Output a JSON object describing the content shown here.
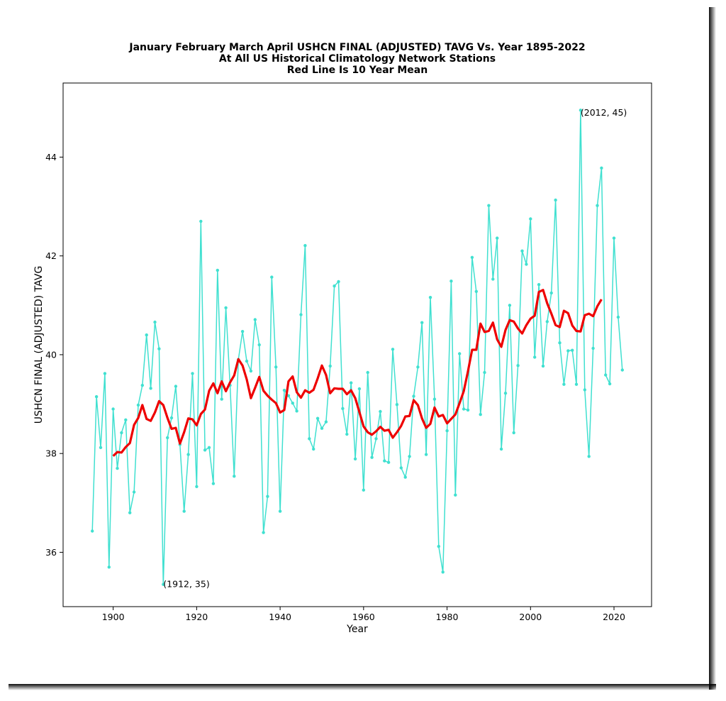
{
  "chart_data": {
    "type": "line",
    "title_lines": [
      "January February March April USHCN FINAL (ADJUSTED) TAVG Vs. Year 1895-2022",
      "At All US Historical Climatology Network Stations",
      "Red Line Is 10 Year Mean"
    ],
    "xlabel": "Year",
    "ylabel": "USHCN FINAL (ADJUSTED) TAVG",
    "xlim": [
      1888,
      2029
    ],
    "ylim": [
      34.9,
      45.5
    ],
    "xticks": [
      1900,
      1920,
      1940,
      1960,
      1980,
      2000,
      2020
    ],
    "yticks": [
      36,
      38,
      40,
      42,
      44
    ],
    "grid": false,
    "colors": {
      "annual": "#40e0d0",
      "mean": "#ee0000",
      "frame_shadow": "#000000"
    },
    "annotations": [
      {
        "text": "(1912, 35)",
        "x": 1912,
        "y": 35.35
      },
      {
        "text": "(2012, 45)",
        "x": 2012,
        "y": 44.9
      }
    ],
    "series": [
      {
        "style": "line-with-dots",
        "x": [
          1895,
          1896,
          1897,
          1898,
          1899,
          1900,
          1901,
          1902,
          1903,
          1904,
          1905,
          1906,
          1907,
          1908,
          1909,
          1910,
          1911,
          1912,
          1913,
          1914,
          1915,
          1916,
          1917,
          1918,
          1919,
          1920,
          1921,
          1922,
          1923,
          1924,
          1925,
          1926,
          1927,
          1928,
          1929,
          1930,
          1931,
          1932,
          1933,
          1934,
          1935,
          1936,
          1937,
          1938,
          1939,
          1940,
          1941,
          1942,
          1943,
          1944,
          1945,
          1946,
          1947,
          1948,
          1949,
          1950,
          1951,
          1952,
          1953,
          1954,
          1955,
          1956,
          1957,
          1958,
          1959,
          1960,
          1961,
          1962,
          1963,
          1964,
          1965,
          1966,
          1967,
          1968,
          1969,
          1970,
          1971,
          1972,
          1973,
          1974,
          1975,
          1976,
          1977,
          1978,
          1979,
          1980,
          1981,
          1982,
          1983,
          1984,
          1985,
          1986,
          1987,
          1988,
          1989,
          1990,
          1991,
          1992,
          1993,
          1994,
          1995,
          1996,
          1997,
          1998,
          1999,
          2000,
          2001,
          2002,
          2003,
          2004,
          2005,
          2006,
          2007,
          2008,
          2009,
          2010,
          2011,
          2012,
          2013,
          2014,
          2015,
          2016,
          2017,
          2018,
          2019,
          2020,
          2021,
          2022
        ],
        "y": [
          36.43,
          39.15,
          38.12,
          39.62,
          35.7,
          38.9,
          37.7,
          38.42,
          38.68,
          36.8,
          37.22,
          38.98,
          39.38,
          40.4,
          39.32,
          40.66,
          40.12,
          35.35,
          38.32,
          38.72,
          39.36,
          38.18,
          36.83,
          37.98,
          39.62,
          37.33,
          42.7,
          38.07,
          38.12,
          37.39,
          41.71,
          39.1,
          40.95,
          39.38,
          37.54,
          39.9,
          40.47,
          39.87,
          39.67,
          40.71,
          40.2,
          36.4,
          37.13,
          41.57,
          39.75,
          36.83,
          39.28,
          39.17,
          39.02,
          38.86,
          40.81,
          42.21,
          38.3,
          38.09,
          38.71,
          38.51,
          38.64,
          39.77,
          41.39,
          41.48,
          38.91,
          38.39,
          39.43,
          37.89,
          39.31,
          37.26,
          39.64,
          37.92,
          38.3,
          38.85,
          37.85,
          37.82,
          40.11,
          38.99,
          37.71,
          37.52,
          37.94,
          39.16,
          39.75,
          40.65,
          37.98,
          41.16,
          39.1,
          36.12,
          35.6,
          38.46,
          41.49,
          37.16,
          40.02,
          38.9,
          38.88,
          41.97,
          41.28,
          38.79,
          39.64,
          43.02,
          41.53,
          42.36,
          38.09,
          39.22,
          41.0,
          38.42,
          39.78,
          42.1,
          41.83,
          42.75,
          39.95,
          41.42,
          39.77,
          40.67,
          41.25,
          43.13,
          40.24,
          39.4,
          40.08,
          40.09,
          39.4,
          44.95,
          39.29,
          37.94,
          40.13,
          43.02,
          43.78,
          39.59,
          39.41,
          42.36,
          40.76,
          39.69
        ]
      },
      {
        "style": "thick-line",
        "x": [
          1900,
          1901,
          1902,
          1903,
          1904,
          1905,
          1906,
          1907,
          1908,
          1909,
          1910,
          1911,
          1912,
          1913,
          1914,
          1915,
          1916,
          1917,
          1918,
          1919,
          1920,
          1921,
          1922,
          1923,
          1924,
          1925,
          1926,
          1927,
          1928,
          1929,
          1930,
          1931,
          1932,
          1933,
          1934,
          1935,
          1936,
          1937,
          1938,
          1939,
          1940,
          1941,
          1942,
          1943,
          1944,
          1945,
          1946,
          1947,
          1948,
          1949,
          1950,
          1951,
          1952,
          1953,
          1954,
          1955,
          1956,
          1957,
          1958,
          1959,
          1960,
          1961,
          1962,
          1963,
          1964,
          1965,
          1966,
          1967,
          1968,
          1969,
          1970,
          1971,
          1972,
          1973,
          1974,
          1975,
          1976,
          1977,
          1978,
          1979,
          1980,
          1981,
          1982,
          1983,
          1984,
          1985,
          1986,
          1987,
          1988,
          1989,
          1990,
          1991,
          1992,
          1993,
          1994,
          1995,
          1996,
          1997,
          1998,
          1999,
          2000,
          2001,
          2002,
          2003,
          2004,
          2005,
          2006,
          2007,
          2008,
          2009,
          2010,
          2011,
          2012,
          2013,
          2014,
          2015,
          2016,
          2017
        ],
        "y": [
          37.95,
          38.03,
          38.02,
          38.13,
          38.21,
          38.58,
          38.72,
          38.98,
          38.7,
          38.66,
          38.83,
          39.06,
          38.98,
          38.72,
          38.5,
          38.52,
          38.2,
          38.43,
          38.71,
          38.69,
          38.57,
          38.8,
          38.89,
          39.27,
          39.42,
          39.22,
          39.46,
          39.26,
          39.44,
          39.58,
          39.91,
          39.78,
          39.5,
          39.12,
          39.33,
          39.55,
          39.27,
          39.17,
          39.09,
          39.02,
          38.83,
          38.88,
          39.46,
          39.56,
          39.24,
          39.13,
          39.28,
          39.23,
          39.29,
          39.52,
          39.78,
          39.59,
          39.22,
          39.32,
          39.31,
          39.31,
          39.2,
          39.28,
          39.12,
          38.84,
          38.55,
          38.43,
          38.38,
          38.45,
          38.54,
          38.46,
          38.48,
          38.32,
          38.43,
          38.56,
          38.75,
          38.76,
          39.08,
          38.98,
          38.71,
          38.52,
          38.6,
          38.93,
          38.75,
          38.78,
          38.61,
          38.7,
          38.79,
          39.02,
          39.26,
          39.66,
          40.1,
          40.1,
          40.63,
          40.46,
          40.48,
          40.65,
          40.31,
          40.16,
          40.5,
          40.7,
          40.67,
          40.53,
          40.43,
          40.6,
          40.73,
          40.79,
          41.27,
          41.31,
          41.04,
          40.83,
          40.6,
          40.56,
          40.89,
          40.84,
          40.59,
          40.48,
          40.47,
          40.8,
          40.83,
          40.78,
          40.98,
          41.12
        ]
      }
    ]
  }
}
